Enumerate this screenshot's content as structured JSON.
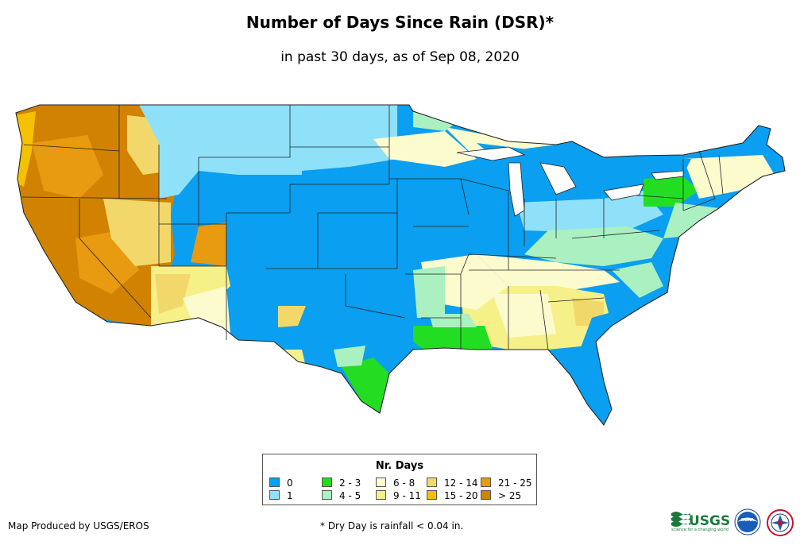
{
  "title": "Number of Days Since Rain (DSR)*",
  "subtitle": "in past 30 days, as of Sep 08, 2020",
  "legend": {
    "title": "Nr. Days",
    "items": [
      {
        "label": "0",
        "color": "#0a9ff0"
      },
      {
        "label": "1",
        "color": "#8ee1f8"
      },
      {
        "label": "2 - 3",
        "color": "#22dd22"
      },
      {
        "label": "4 - 5",
        "color": "#aaf0c0"
      },
      {
        "label": "6 - 8",
        "color": "#fbfbce"
      },
      {
        "label": "9 - 11",
        "color": "#f6f089"
      },
      {
        "label": "12 - 14",
        "color": "#f2d86a"
      },
      {
        "label": "15 - 20",
        "color": "#f5c000"
      },
      {
        "label": "21 - 25",
        "color": "#e89a10"
      },
      {
        "label": "> 25",
        "color": "#d08200"
      }
    ]
  },
  "credit": "Map Produced by USGS/EROS",
  "footnote": "* Dry Day is rainfall < 0.04 in.",
  "logos": {
    "usgs": "USGS",
    "usgs_tagline": "science for a changing world",
    "noaa": "NOAA"
  }
}
